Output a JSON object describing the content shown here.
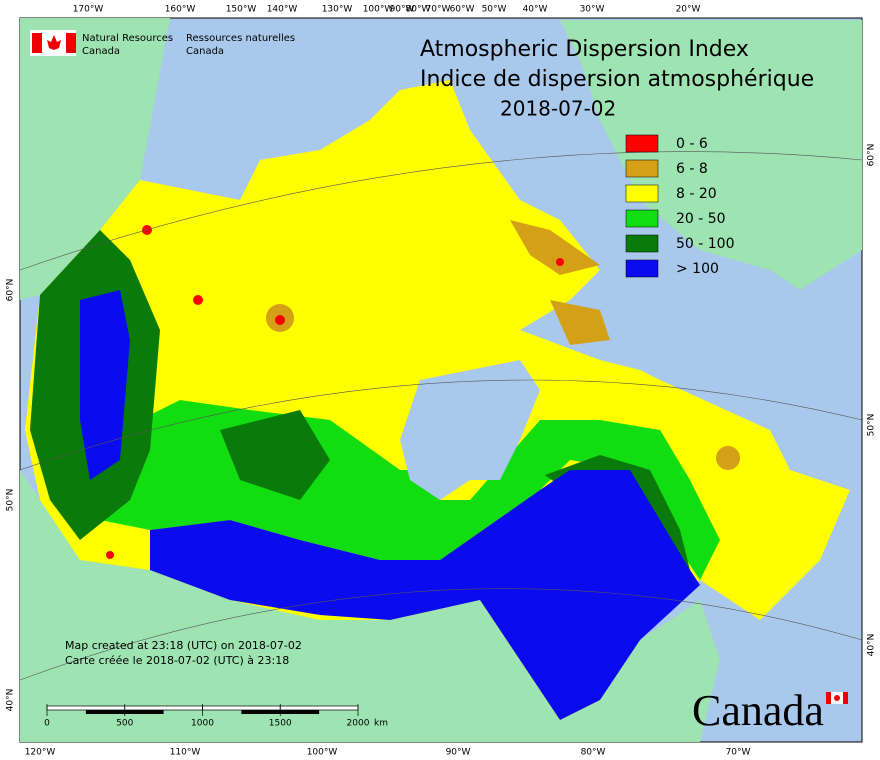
{
  "header": {
    "org_en": [
      "Natural Resources",
      "Canada"
    ],
    "org_fr": [
      "Ressources naturelles",
      "Canada"
    ]
  },
  "title": [
    "Atmospheric Dispersion Index",
    "Indice de dispersion atmosphérique",
    "2018-07-02"
  ],
  "legend": [
    {
      "label": "0 - 6",
      "color": "#ff0000"
    },
    {
      "label": "6 - 8",
      "color": "#d4a017"
    },
    {
      "label": "8 - 20",
      "color": "#ffff00"
    },
    {
      "label": "20 - 50",
      "color": "#11dd11"
    },
    {
      "label": "50 - 100",
      "color": "#0a7a0a"
    },
    {
      "label": "> 100",
      "color": "#0b0bf0"
    }
  ],
  "graticule": {
    "top": [
      "170°W",
      "160°W",
      "150°W",
      "140°W",
      "130°W",
      "100°W",
      "90°W",
      "80°W",
      "70°W",
      "60°W",
      "50°W",
      "40°W",
      "30°W",
      "20°W"
    ],
    "bottom": [
      "120°W",
      "110°W",
      "100°W",
      "90°W",
      "80°W",
      "70°W"
    ],
    "left": [
      "60°N",
      "50°N",
      "40°N"
    ],
    "right": [
      "60°N",
      "50°N",
      "40°N"
    ]
  },
  "notes": [
    "Map created at 23:18 (UTC) on 2018-07-02",
    "Carte créée le 2018-07-02 (UTC) à 23:18"
  ],
  "scale": {
    "ticks": [
      0,
      500,
      1000,
      1500,
      2000
    ],
    "unit": "km"
  },
  "wordmark": "Canada"
}
